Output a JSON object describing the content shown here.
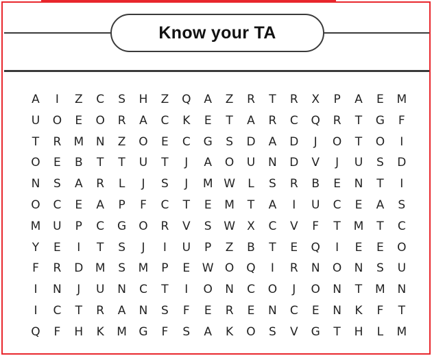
{
  "puzzle": {
    "title": "Know your TA",
    "grid": [
      [
        "A",
        "I",
        "Z",
        "C",
        "S",
        "H",
        "Z",
        "Q",
        "A",
        "Z",
        "R",
        "T",
        "R",
        "X",
        "P",
        "A",
        "E",
        "M"
      ],
      [
        "U",
        "O",
        "E",
        "O",
        "R",
        "A",
        "C",
        "K",
        "E",
        "T",
        "A",
        "R",
        "C",
        "Q",
        "R",
        "T",
        "G",
        "F"
      ],
      [
        "T",
        "R",
        "M",
        "N",
        "Z",
        "O",
        "E",
        "C",
        "G",
        "S",
        "D",
        "A",
        "D",
        "J",
        "O",
        "T",
        "O",
        "I"
      ],
      [
        "O",
        "E",
        "B",
        "T",
        "T",
        "U",
        "T",
        "J",
        "A",
        "O",
        "U",
        "N",
        "D",
        "V",
        "J",
        "U",
        "S",
        "D"
      ],
      [
        "N",
        "S",
        "A",
        "R",
        "L",
        "J",
        "S",
        "J",
        "M",
        "W",
        "L",
        "S",
        "R",
        "B",
        "E",
        "N",
        "T",
        "I"
      ],
      [
        "O",
        "C",
        "E",
        "A",
        "P",
        "F",
        "C",
        "T",
        "E",
        "M",
        "T",
        "A",
        "I",
        "U",
        "C",
        "E",
        "A",
        "S"
      ],
      [
        "M",
        "U",
        "P",
        "C",
        "G",
        "O",
        "R",
        "V",
        "S",
        "W",
        "X",
        "C",
        "V",
        "F",
        "T",
        "M",
        "T",
        "C"
      ],
      [
        "Y",
        "E",
        "I",
        "T",
        "S",
        "J",
        "I",
        "U",
        "P",
        "Z",
        "B",
        "T",
        "E",
        "Q",
        "I",
        "E",
        "E",
        "O"
      ],
      [
        "F",
        "R",
        "D",
        "M",
        "S",
        "M",
        "P",
        "E",
        "W",
        "O",
        "Q",
        "I",
        "R",
        "N",
        "O",
        "N",
        "S",
        "U"
      ],
      [
        "I",
        "N",
        "J",
        "U",
        "N",
        "C",
        "T",
        "I",
        "O",
        "N",
        "C",
        "O",
        "J",
        "O",
        "N",
        "T",
        "M",
        "N"
      ],
      [
        "I",
        "C",
        "T",
        "R",
        "A",
        "N",
        "S",
        "F",
        "E",
        "R",
        "E",
        "N",
        "C",
        "E",
        "N",
        "K",
        "F",
        "T"
      ],
      [
        "Q",
        "F",
        "H",
        "K",
        "M",
        "G",
        "F",
        "S",
        "A",
        "K",
        "O",
        "S",
        "V",
        "G",
        "T",
        "H",
        "L",
        "M"
      ]
    ]
  },
  "colors": {
    "border": "#e8262c",
    "line": "#3a3a3a",
    "text": "#222222"
  }
}
